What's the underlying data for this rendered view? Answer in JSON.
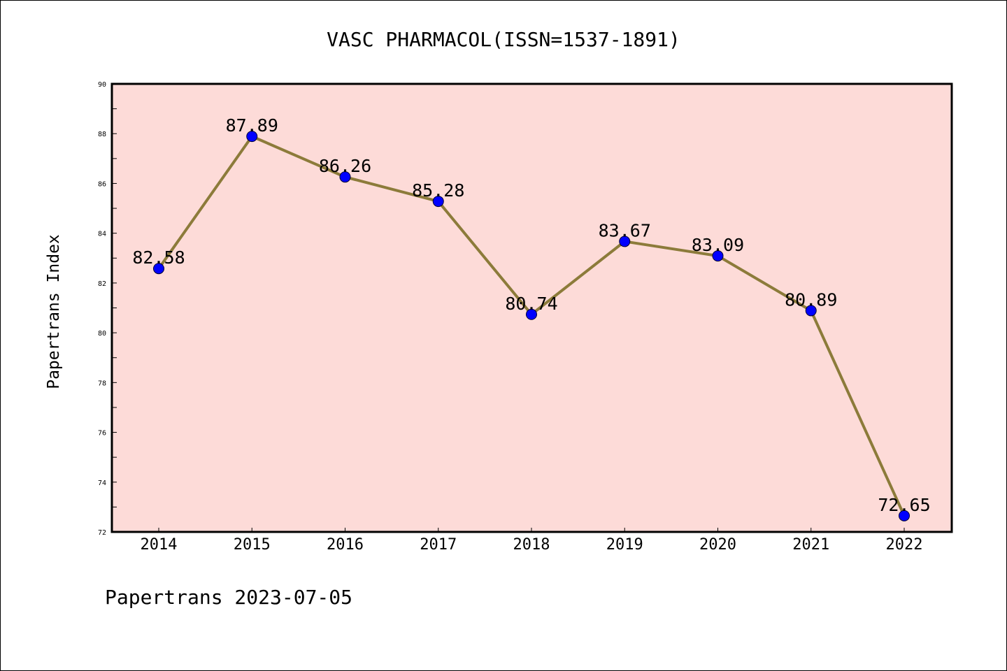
{
  "chart_data": {
    "type": "line",
    "title": "VASC PHARMACOL(ISSN=1537-1891)",
    "xlabel": "",
    "ylabel": "Papertrans Index",
    "categories": [
      "2014",
      "2015",
      "2016",
      "2017",
      "2018",
      "2019",
      "2020",
      "2021",
      "2022"
    ],
    "series": [
      {
        "values": [
          82.58,
          87.89,
          86.26,
          85.28,
          80.74,
          83.67,
          83.09,
          80.89,
          72.65
        ],
        "labels": [
          "82.58",
          "87.89",
          "86.26",
          "85.28",
          "80.74",
          "83.67",
          "83.09",
          "80.89",
          "72.65"
        ]
      }
    ],
    "ylim": [
      72,
      90
    ],
    "yticks": [
      "72",
      "74",
      "76",
      "78",
      "80",
      "82",
      "84",
      "86",
      "88",
      "90"
    ],
    "grid": false,
    "legend": "none",
    "colors": {
      "plot_background": "#fddbd8",
      "line": "#8c7b3a",
      "marker": "#0000ff"
    }
  },
  "footer": "Papertrans 2023-07-05"
}
